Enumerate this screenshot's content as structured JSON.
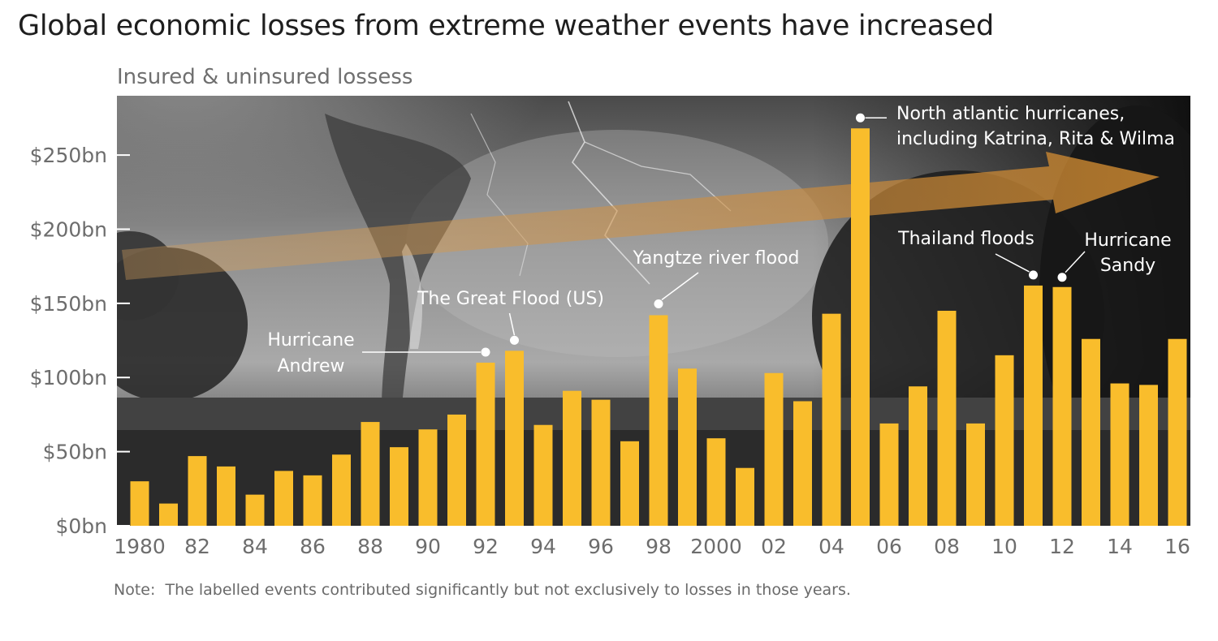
{
  "title": "Global economic losses from extreme weather events have increased",
  "subtitle": "Insured & uninsured lossess",
  "note": "Note:  The labelled events contributed significantly but not exclusively to losses in those years.",
  "colors": {
    "bar": "#f9bd2c",
    "arrow": "#d89a4e",
    "photo_dark": "#1c1c1c",
    "photo_light": "#b5b5b5",
    "annotation": "#ffffff",
    "tick_text": "#6d6d6d"
  },
  "chart_data": {
    "type": "bar",
    "x": [
      1980,
      1981,
      1982,
      1983,
      1984,
      1985,
      1986,
      1987,
      1988,
      1989,
      1990,
      1991,
      1992,
      1993,
      1994,
      1995,
      1996,
      1997,
      1998,
      1999,
      2000,
      2001,
      2002,
      2003,
      2004,
      2005,
      2006,
      2007,
      2008,
      2009,
      2010,
      2011,
      2012,
      2013,
      2014,
      2015,
      2016
    ],
    "values": [
      30,
      15,
      47,
      40,
      21,
      37,
      34,
      48,
      70,
      53,
      65,
      75,
      110,
      118,
      68,
      91,
      85,
      57,
      142,
      106,
      59,
      39,
      103,
      84,
      143,
      268,
      69,
      94,
      145,
      69,
      115,
      162,
      161,
      126,
      96,
      95,
      126
    ],
    "unit": "$bn",
    "ylim": [
      0,
      290
    ],
    "yticks": [
      0,
      50,
      100,
      150,
      200,
      250
    ],
    "ytick_labels": [
      "$0bn",
      "$50bn",
      "$100bn",
      "$150bn",
      "$200bn",
      "$250bn"
    ],
    "xtick_values": [
      1980,
      1982,
      1984,
      1986,
      1988,
      1990,
      1992,
      1994,
      1996,
      1998,
      2000,
      2002,
      2004,
      2006,
      2008,
      2010,
      2012,
      2014,
      2016
    ],
    "xtick_labels": [
      "1980",
      "82",
      "84",
      "86",
      "88",
      "90",
      "92",
      "94",
      "96",
      "98",
      "2000",
      "02",
      "04",
      "06",
      "08",
      "10",
      "12",
      "14",
      "16"
    ],
    "annotations": [
      {
        "year": 1992,
        "lines": [
          "Hurricane",
          "Andrew"
        ]
      },
      {
        "year": 1993,
        "lines": [
          "The Great Flood (US)"
        ]
      },
      {
        "year": 1998,
        "lines": [
          "Yangtze river flood"
        ]
      },
      {
        "year": 2005,
        "lines": [
          "North atlantic hurricanes,",
          "including Katrina, Rita & Wilma"
        ]
      },
      {
        "year": 2011,
        "lines": [
          "Thailand floods"
        ]
      },
      {
        "year": 2012,
        "lines": [
          "Hurricane",
          "Sandy"
        ]
      }
    ],
    "trend": "increasing",
    "grid": false
  }
}
